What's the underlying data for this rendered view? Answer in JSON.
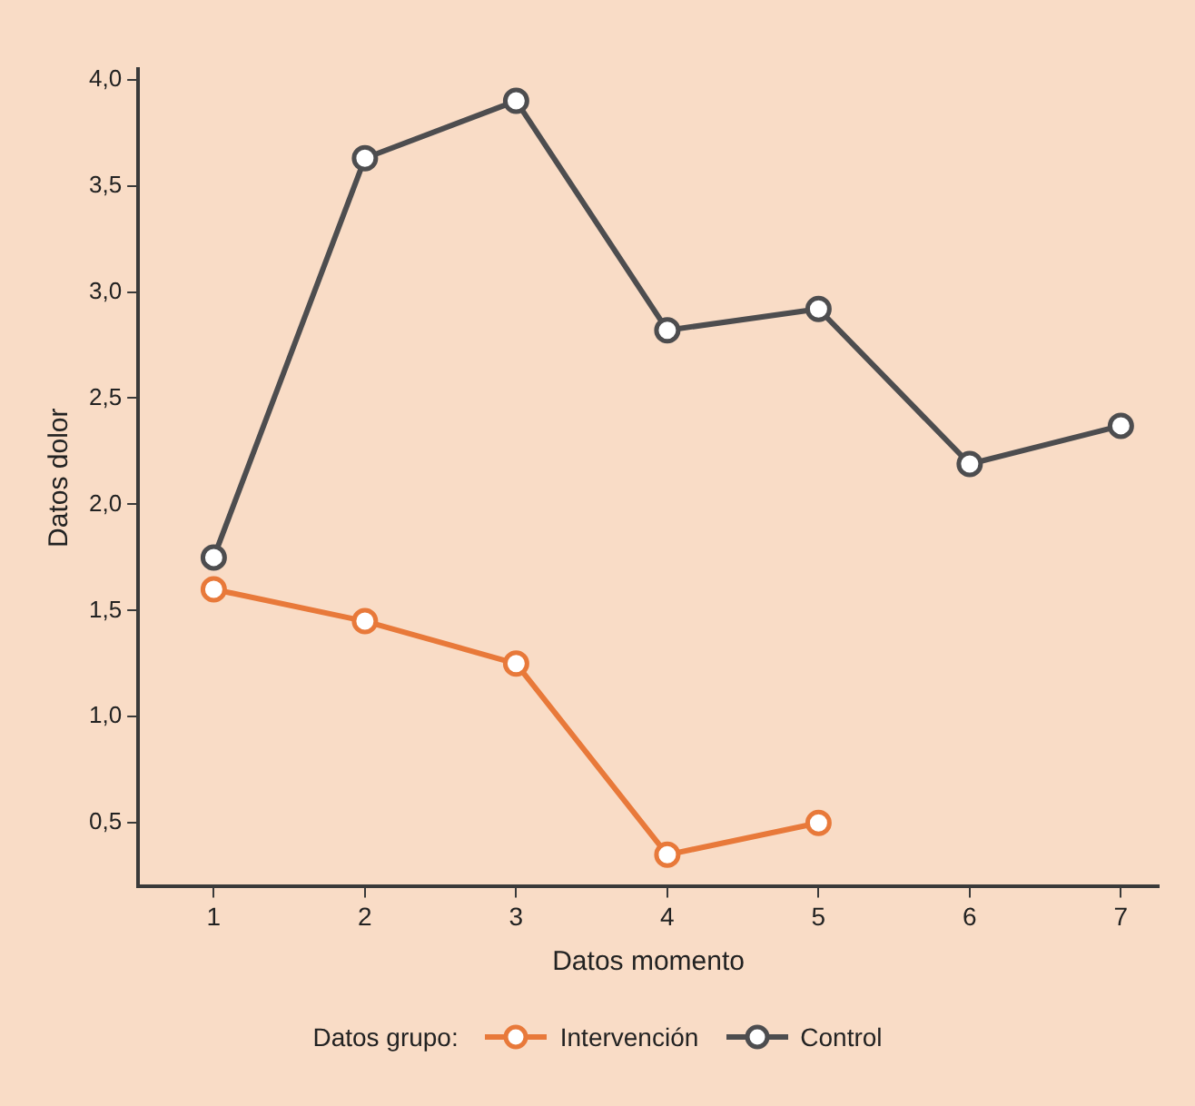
{
  "chart_data": {
    "type": "line",
    "xlabel": "Datos momento",
    "ylabel": "Datos dolor",
    "legend_title": "Datos grupo:",
    "legend": "bottom",
    "marker": "circle",
    "grid": false,
    "x": [
      1,
      2,
      3,
      4,
      5,
      6,
      7
    ],
    "xlim": [
      0.5,
      7.25
    ],
    "xticks": [
      1,
      2,
      3,
      4,
      5,
      6,
      7
    ],
    "ylim": [
      0.2,
      4.05
    ],
    "yticks": [
      {
        "value": 0.5,
        "label": "0,5"
      },
      {
        "value": 1,
        "label": "1,0"
      },
      {
        "value": 1.5,
        "label": "1,5"
      },
      {
        "value": 2,
        "label": "2,0"
      },
      {
        "value": 2.5,
        "label": "2,5"
      },
      {
        "value": 3,
        "label": "3,0"
      },
      {
        "value": 3.5,
        "label": "3,5"
      },
      {
        "value": 4,
        "label": "4,0"
      }
    ],
    "series": [
      {
        "name": "Intervención",
        "color": "#e8793a",
        "values": [
          1.6,
          1.45,
          1.25,
          0.35,
          0.5,
          null,
          null
        ]
      },
      {
        "name": "Control",
        "color": "#4d4d4f",
        "values": [
          1.75,
          3.63,
          3.9,
          2.82,
          2.92,
          2.19,
          2.37
        ]
      }
    ]
  }
}
